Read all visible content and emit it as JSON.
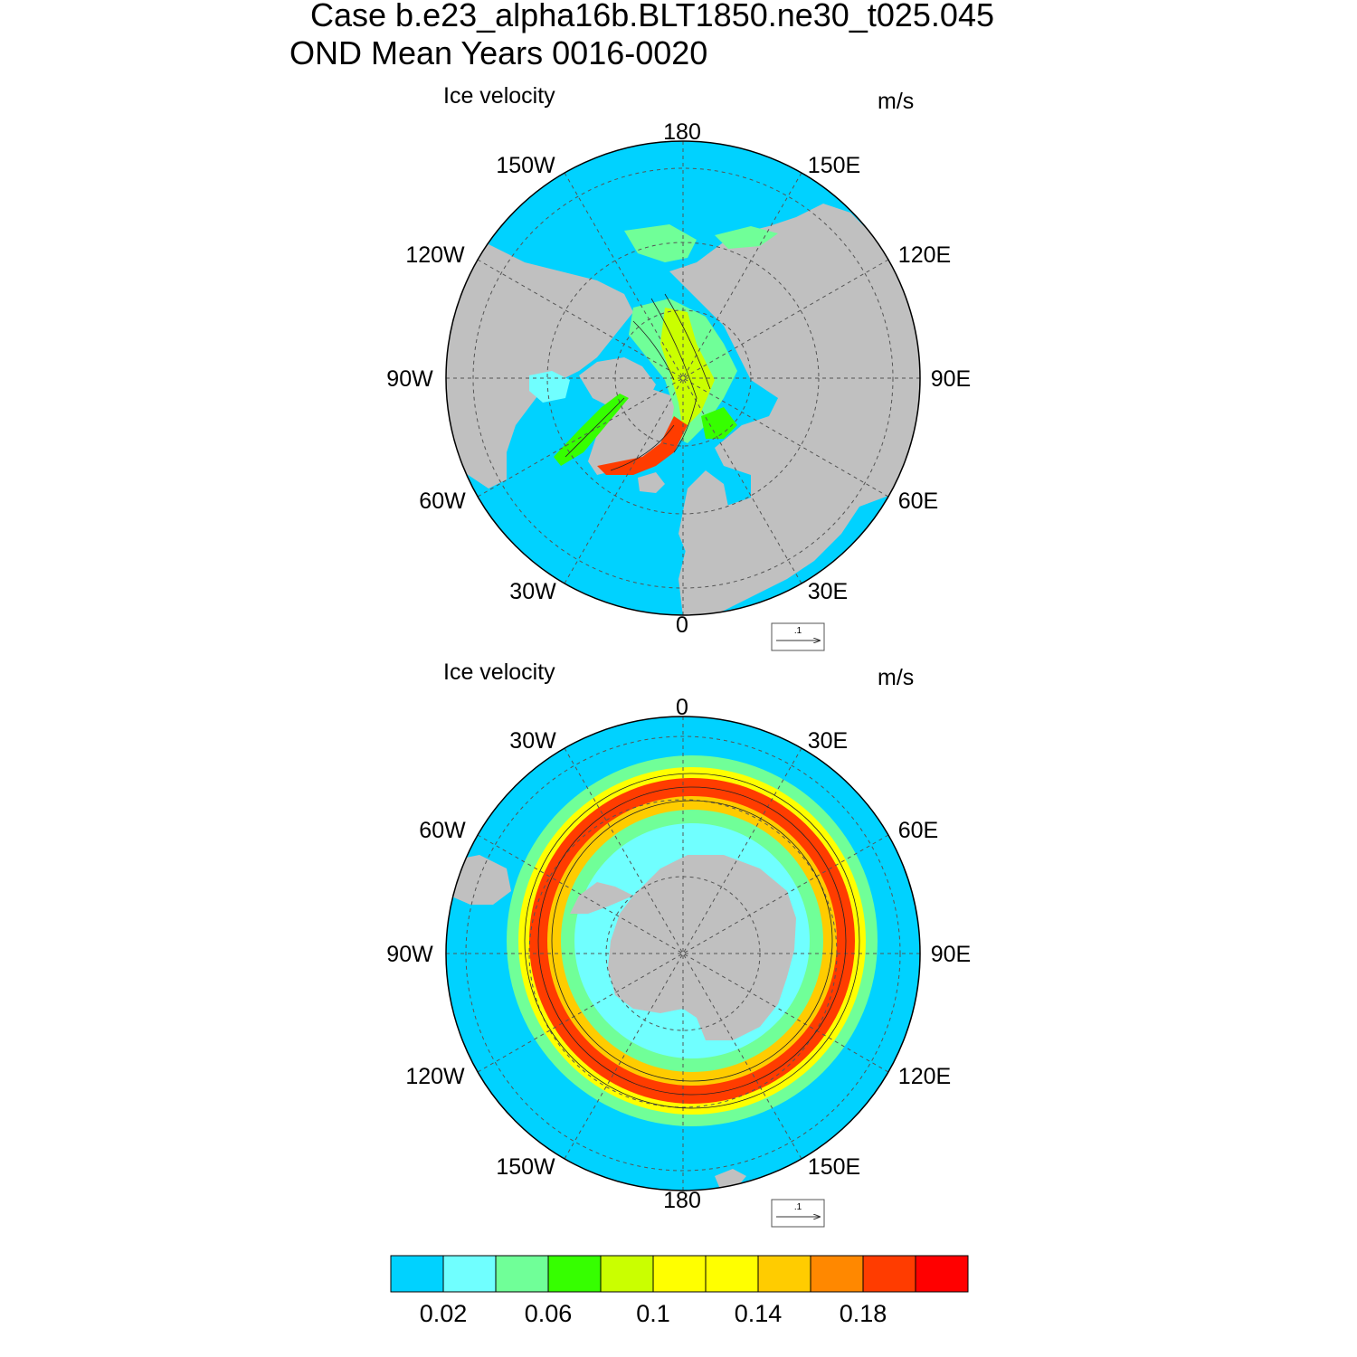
{
  "title_line1": "Case b.e23_alpha16b.BLT1850.ne30_t025.045",
  "title_line2": "OND Mean   Years 0016-0020",
  "panels": [
    {
      "hemisphere": "north",
      "title": "Ice velocity",
      "units": "m/s",
      "lon_labels": {
        "top": "180",
        "bottom": "0",
        "left": "90W",
        "right": "90E",
        "ul1": "150W",
        "ur1": "150E",
        "ul2": "120W",
        "ur2": "120E",
        "ll1": "60W",
        "lr1": "60E",
        "ll2": "30W",
        "lr2": "30E"
      },
      "ref_vector": ".1"
    },
    {
      "hemisphere": "south",
      "title": "Ice velocity",
      "units": "m/s",
      "lon_labels": {
        "top": "0",
        "bottom": "180",
        "left": "90W",
        "right": "90E",
        "ul1": "30W",
        "ur1": "30E",
        "ul2": "60W",
        "ur2": "60E",
        "ll1": "120W",
        "lr1": "120E",
        "ll2": "150W",
        "lr2": "150E"
      },
      "ref_vector": ".1"
    }
  ],
  "colorbar": {
    "colors": [
      "#00d2ff",
      "#70ffff",
      "#70ff98",
      "#36ff00",
      "#caff00",
      "#ffff00",
      "#ffff00",
      "#ffcc00",
      "#ff8800",
      "#ff3c00",
      "#ff0000"
    ],
    "tick_labels": [
      "0.02",
      "0.06",
      "0.1",
      "0.14",
      "0.18"
    ]
  },
  "colors": {
    "ocean": "#00d2ff",
    "land": "#c0c0c0",
    "grid": "#555555"
  }
}
